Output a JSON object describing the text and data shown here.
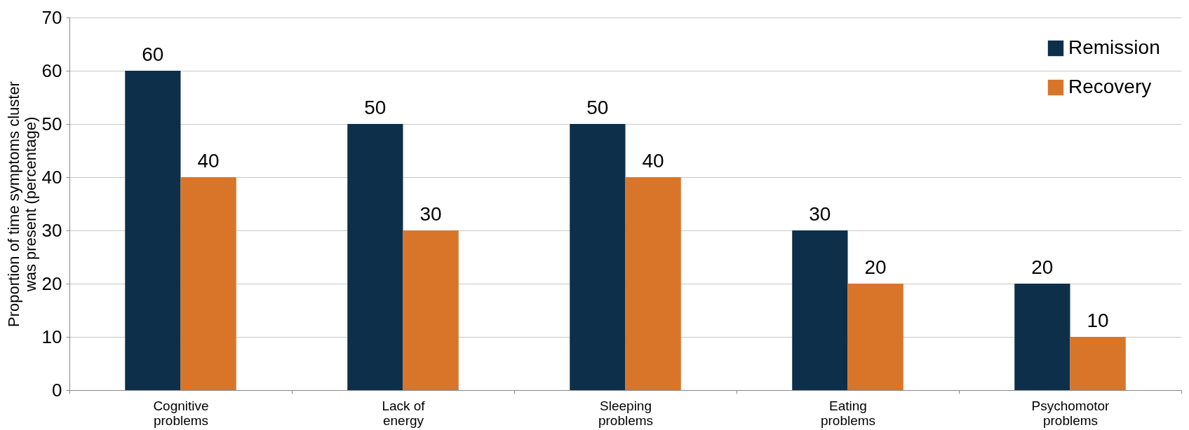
{
  "chart_data": {
    "type": "bar",
    "ylabel": "Proportion of time symptoms cluster\nwas present (percentage)",
    "categories": [
      "Cognitive\nproblems",
      "Lack of\nenergy",
      "Sleeping\nproblems",
      "Eating\nproblems",
      "Psychomotor\nproblems"
    ],
    "series": [
      {
        "name": "Remission",
        "color": "#0d2f4a",
        "values": [
          60,
          50,
          50,
          30,
          20
        ]
      },
      {
        "name": "Recovery",
        "color": "#d97529",
        "values": [
          40,
          30,
          40,
          20,
          10
        ]
      }
    ],
    "ylim": [
      0,
      70
    ],
    "yticks": [
      0,
      10,
      20,
      30,
      40,
      50,
      60,
      70
    ],
    "grid": "y",
    "legend": "top right",
    "data_labels": true
  }
}
